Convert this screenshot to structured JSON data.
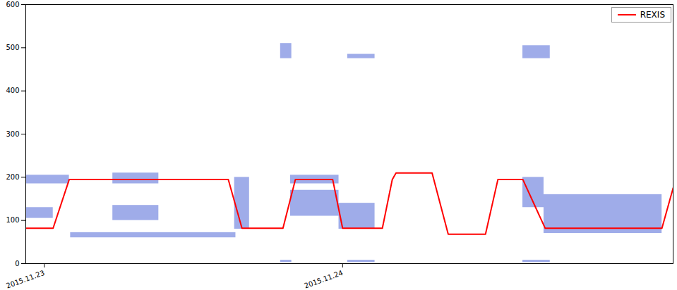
{
  "chart_data": {
    "type": "line",
    "legend": "top-right",
    "grid": false,
    "color": "#1030c8",
    "xlim": [
      -1.5,
      50.6
    ],
    "xticks": [
      {
        "value": 0,
        "label": "2015.11.23"
      },
      {
        "value": 24,
        "label": "2015.11.24"
      }
    ],
    "ylim": [
      0,
      600
    ],
    "yticks": [
      0,
      100,
      200,
      300,
      400,
      500,
      600
    ],
    "x": [
      -1.5,
      0.7,
      2.0,
      14.8,
      15.9,
      19.2,
      20.2,
      23.2,
      24.0,
      27.2,
      28.0,
      28.3,
      31.2,
      32.5,
      35.5,
      36.5,
      38.5,
      40.3,
      49.7,
      50.6
    ],
    "series": [
      {
        "name": "REXIS",
        "color": "#ff0000",
        "type": "line",
        "values": [
          82,
          82,
          195,
          195,
          82,
          82,
          195,
          195,
          82,
          82,
          195,
          210,
          210,
          68,
          68,
          195,
          195,
          82,
          82,
          175
        ]
      }
    ],
    "bands": [
      {
        "x1": -1.5,
        "x2": 2.0,
        "y1": 185,
        "y2": 205
      },
      {
        "x1": -1.5,
        "x2": 0.7,
        "y1": 105,
        "y2": 130
      },
      {
        "x1": 2.1,
        "x2": 15.4,
        "y1": 60,
        "y2": 72
      },
      {
        "x1": 5.5,
        "x2": 9.2,
        "y1": 185,
        "y2": 210
      },
      {
        "x1": 5.5,
        "x2": 9.2,
        "y1": 100,
        "y2": 135
      },
      {
        "x1": 15.3,
        "x2": 16.5,
        "y1": 80,
        "y2": 200
      },
      {
        "x1": 19.8,
        "x2": 23.7,
        "y1": 185,
        "y2": 205
      },
      {
        "x1": 19.8,
        "x2": 23.7,
        "y1": 110,
        "y2": 170
      },
      {
        "x1": 23.7,
        "x2": 26.6,
        "y1": 80,
        "y2": 140
      },
      {
        "x1": 38.5,
        "x2": 40.2,
        "y1": 130,
        "y2": 200
      },
      {
        "x1": 40.2,
        "x2": 49.7,
        "y1": 70,
        "y2": 160
      },
      {
        "x1": 19.0,
        "x2": 19.9,
        "y1": 475,
        "y2": 510
      },
      {
        "x1": 24.4,
        "x2": 26.6,
        "y1": 475,
        "y2": 485
      },
      {
        "x1": 38.5,
        "x2": 40.7,
        "y1": 475,
        "y2": 505
      },
      {
        "x1": 19.0,
        "x2": 19.9,
        "y1": 3,
        "y2": 8
      },
      {
        "x1": 24.4,
        "x2": 26.6,
        "y1": 3,
        "y2": 8
      },
      {
        "x1": 38.5,
        "x2": 40.7,
        "y1": 3,
        "y2": 8
      }
    ]
  }
}
